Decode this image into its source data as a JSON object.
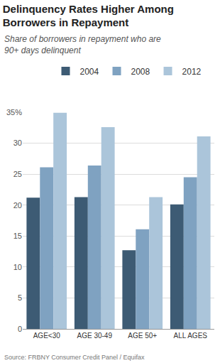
{
  "chart_data": {
    "type": "bar",
    "title": "Delinquency Rates Higher Among Borrowers in Repayment",
    "subtitle": "Share of borrowers in repayment who are 90+ days delinquent",
    "source": "Source: FRBNY Consumer Credit Panel / Equifax",
    "categories": [
      "AGE<30",
      "AGE 30-49",
      "AGE 50+",
      "ALL AGES"
    ],
    "series": [
      {
        "name": "2004",
        "color": "#3d5b74",
        "values": [
          21.2,
          21.3,
          12.7,
          20.1
        ]
      },
      {
        "name": "2008",
        "color": "#7fa2c1",
        "values": [
          26.1,
          26.4,
          16.1,
          24.5
        ]
      },
      {
        "name": "2012",
        "color": "#abc5da",
        "values": [
          34.9,
          32.6,
          21.3,
          31.1
        ]
      }
    ],
    "ylim": [
      0,
      35
    ],
    "yticks": [
      0,
      5,
      10,
      15,
      20,
      25,
      30,
      {
        "value": 35,
        "label": "35%"
      }
    ],
    "grid": true,
    "legend": "top"
  }
}
